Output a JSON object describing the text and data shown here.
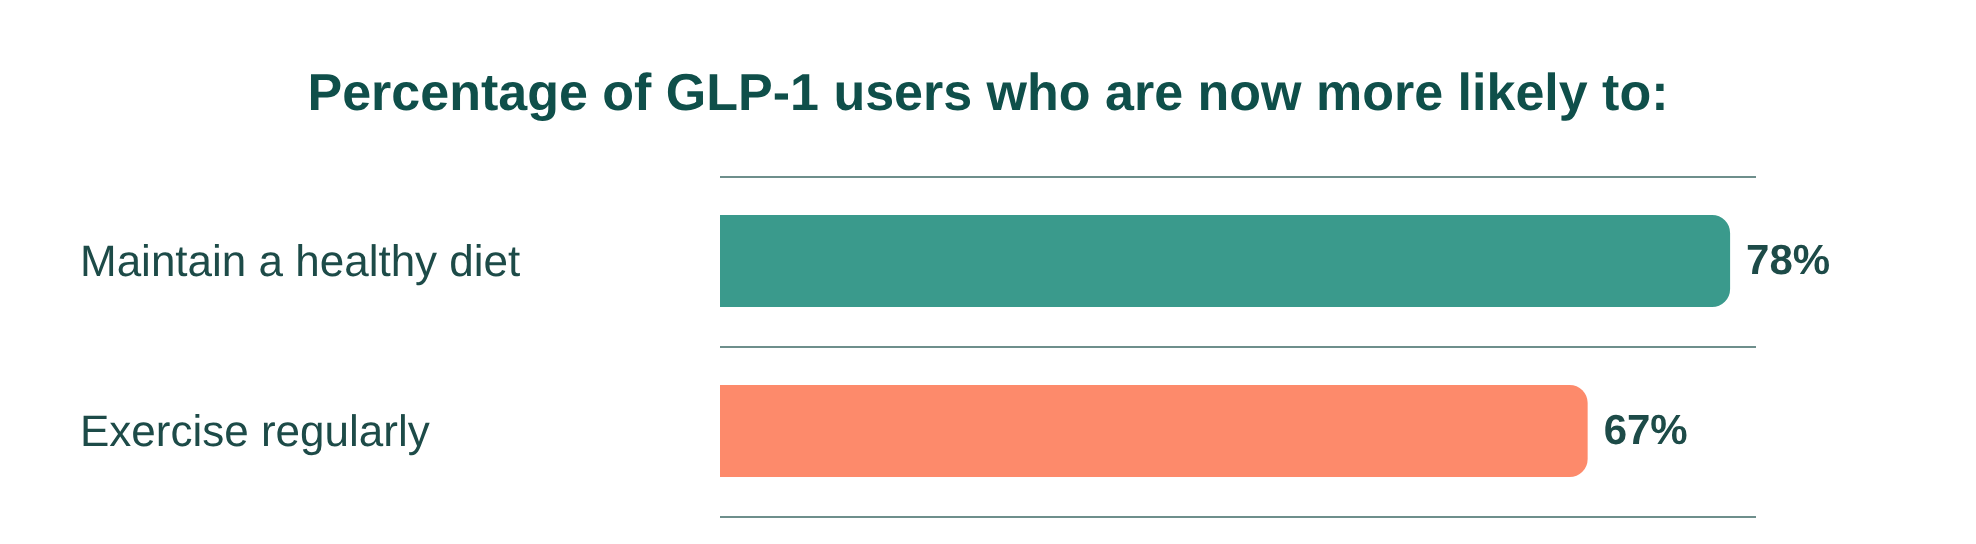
{
  "chart_data": {
    "type": "bar",
    "orientation": "horizontal",
    "title": "Percentage of GLP-1 users who are now more likely to:",
    "categories": [
      "Maintain a healthy diet",
      "Exercise regularly"
    ],
    "values": [
      78,
      67
    ],
    "colors": [
      "#3a9a8c",
      "#fd8a6b"
    ],
    "value_labels": [
      "78%",
      "67%"
    ],
    "grid": "y"
  }
}
